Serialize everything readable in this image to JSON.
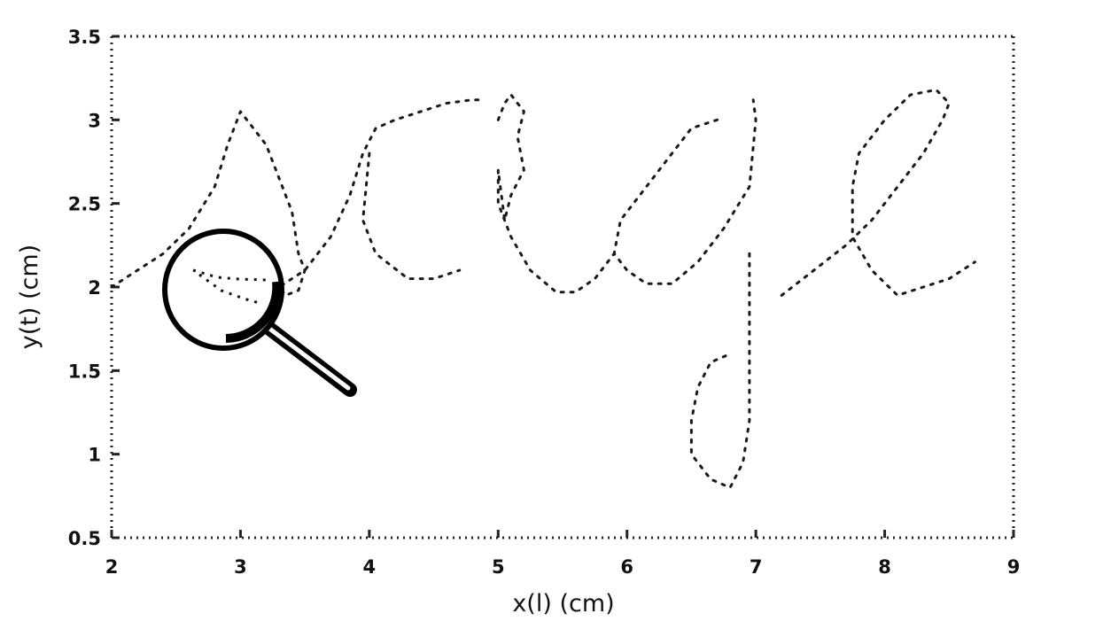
{
  "chart_data": {
    "type": "line",
    "title": "",
    "xlabel": "x(l) (cm)",
    "ylabel": "y(t) (cm)",
    "xlim": [
      2,
      9
    ],
    "ylim": [
      0.5,
      3.5
    ],
    "x_ticks": [
      2,
      3,
      4,
      5,
      6,
      7,
      8,
      9
    ],
    "x_tick_labels": [
      "2",
      "3",
      "4",
      "5",
      "6",
      "7",
      "8",
      "9"
    ],
    "y_ticks": [
      0.5,
      1,
      1.5,
      2,
      2.5,
      3,
      3.5
    ],
    "y_tick_labels": [
      "0.5",
      "1",
      "1.5",
      "2",
      "2.5",
      "3",
      "3.5"
    ],
    "grid": false,
    "line_style": "dotted",
    "line_color": "#1a1a1a",
    "series": [
      {
        "x": [
          2.0,
          2.2,
          2.4,
          2.6,
          2.8,
          2.9,
          3.0,
          3.1,
          3.2,
          3.3,
          3.4,
          3.45,
          3.5,
          3.45,
          3.35,
          3.3,
          3.5,
          3.7,
          3.85,
          3.95,
          4.05,
          4.2,
          4.4,
          4.6,
          4.8,
          4.9
        ],
        "y": [
          2.0,
          2.1,
          2.2,
          2.35,
          2.6,
          2.85,
          3.05,
          2.95,
          2.85,
          2.65,
          2.45,
          2.2,
          2.1,
          1.98,
          1.95,
          2.0,
          2.1,
          2.3,
          2.55,
          2.8,
          2.95,
          3.0,
          3.05,
          3.1,
          3.12,
          3.12
        ]
      },
      {
        "x": [
          4.0,
          3.95,
          4.05,
          4.3,
          4.5,
          4.7
        ],
        "y": [
          2.8,
          2.4,
          2.2,
          2.05,
          2.05,
          2.1
        ]
      },
      {
        "x": [
          5.0,
          5.05,
          5.1,
          5.2,
          5.15,
          5.2,
          5.1,
          5.05,
          5.0,
          5.0,
          5.1,
          5.25,
          5.45,
          5.6,
          5.75,
          5.9
        ],
        "y": [
          3.0,
          3.1,
          3.15,
          3.05,
          2.9,
          2.7,
          2.55,
          2.4,
          2.7,
          2.5,
          2.3,
          2.1,
          1.97,
          1.97,
          2.05,
          2.2
        ]
      },
      {
        "x": [
          6.7,
          6.5,
          6.3,
          6.1,
          5.95,
          5.9,
          6.0,
          6.15,
          6.35,
          6.55,
          6.75,
          6.95,
          7.0,
          6.98
        ],
        "y": [
          3.0,
          2.95,
          2.75,
          2.55,
          2.4,
          2.2,
          2.1,
          2.02,
          2.02,
          2.15,
          2.35,
          2.6,
          3.0,
          3.12
        ]
      },
      {
        "x": [
          6.95,
          6.95,
          6.95,
          6.95,
          6.9,
          6.8,
          6.65,
          6.5,
          6.5,
          6.55,
          6.65,
          6.8
        ],
        "y": [
          2.2,
          1.8,
          1.5,
          1.2,
          0.95,
          0.8,
          0.85,
          1.0,
          1.2,
          1.4,
          1.55,
          1.6
        ]
      },
      {
        "x": [
          7.2,
          7.45,
          7.7,
          7.9,
          8.1,
          8.3,
          8.45,
          8.5,
          8.4,
          8.2,
          8.0,
          7.8,
          7.75,
          7.75,
          7.9,
          8.1,
          8.3,
          8.5,
          8.7
        ],
        "y": [
          1.95,
          2.1,
          2.25,
          2.4,
          2.6,
          2.8,
          3.0,
          3.1,
          3.18,
          3.15,
          3.0,
          2.8,
          2.6,
          2.3,
          2.1,
          1.95,
          2.0,
          2.05,
          2.15
        ]
      }
    ]
  },
  "icons": {
    "magnifier": "magnifying-glass-icon"
  }
}
